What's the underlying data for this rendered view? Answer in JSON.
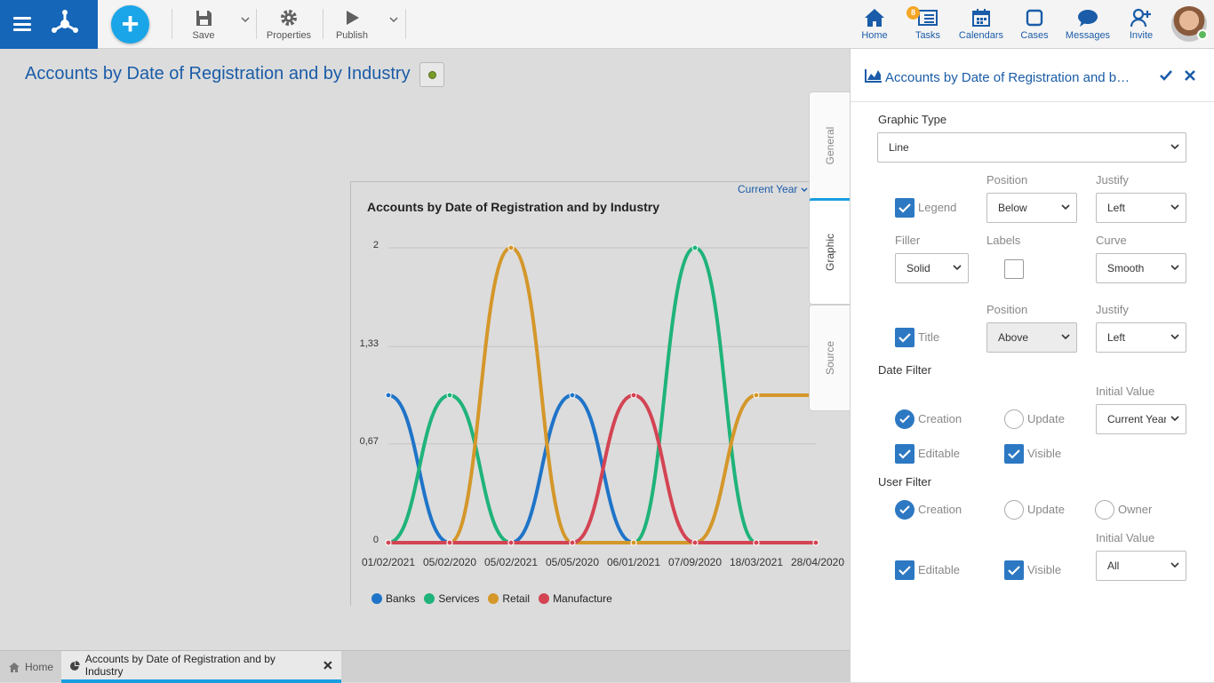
{
  "toolbar": {
    "save": "Save",
    "properties": "Properties",
    "publish": "Publish"
  },
  "nav": {
    "home": "Home",
    "tasks": "Tasks",
    "tasks_badge": "8",
    "calendars": "Calendars",
    "cases": "Cases",
    "messages": "Messages",
    "invite": "Invite"
  },
  "page": {
    "title": "Accounts by Date of Registration and by Industry"
  },
  "chart": {
    "period": "Current Year",
    "title": "Accounts by Date of Registration and by Industry"
  },
  "chart_data": {
    "type": "line",
    "title": "Accounts by Date of Registration and by Industry",
    "categories": [
      "01/02/2021",
      "05/02/2020",
      "05/02/2021",
      "05/05/2020",
      "06/01/2021",
      "07/09/2020",
      "18/03/2021",
      "28/04/2020"
    ],
    "y_ticks": [
      "0",
      "0,67",
      "1,33",
      "2"
    ],
    "ylim": [
      0,
      2
    ],
    "grid": true,
    "curve": "smooth",
    "legend_position": "below",
    "series": [
      {
        "name": "Banks",
        "color": "#1f74c8",
        "values": [
          1,
          0,
          0,
          1,
          0,
          0,
          0,
          0
        ]
      },
      {
        "name": "Services",
        "color": "#1fb37a",
        "values": [
          0,
          1,
          0,
          0,
          0,
          2,
          0,
          0
        ]
      },
      {
        "name": "Retail",
        "color": "#d4972a",
        "values": [
          0,
          0,
          2,
          0,
          0,
          0,
          1,
          1
        ]
      },
      {
        "name": "Manufacture",
        "color": "#d34453",
        "values": [
          0,
          0,
          0,
          0,
          1,
          0,
          0,
          0
        ]
      }
    ]
  },
  "side_tabs": {
    "general": "General",
    "graphic": "Graphic",
    "source": "Source"
  },
  "panel": {
    "title": "Accounts by Date of Registration and by Industry",
    "graphic_type_label": "Graphic Type",
    "graphic_type": "Line",
    "position_label": "Position",
    "justify_label": "Justify",
    "legend_label": "Legend",
    "legend_position": "Below",
    "legend_justify": "Left",
    "filler_label": "Filler",
    "filler": "Solid",
    "labels_label": "Labels",
    "curve_label": "Curve",
    "curve": "Smooth",
    "title_label": "Title",
    "title_position": "Above",
    "title_justify": "Left",
    "date_filter_label": "Date Filter",
    "initial_value_label": "Initial Value",
    "creation_label": "Creation",
    "update_label": "Update",
    "owner_label": "Owner",
    "date_initial_value": "Current Year",
    "editable_label": "Editable",
    "visible_label": "Visible",
    "user_filter_label": "User Filter",
    "user_initial_value": "All"
  },
  "bottom_tabs": {
    "home": "Home",
    "current": "Accounts by Date of Registration and by Industry"
  }
}
